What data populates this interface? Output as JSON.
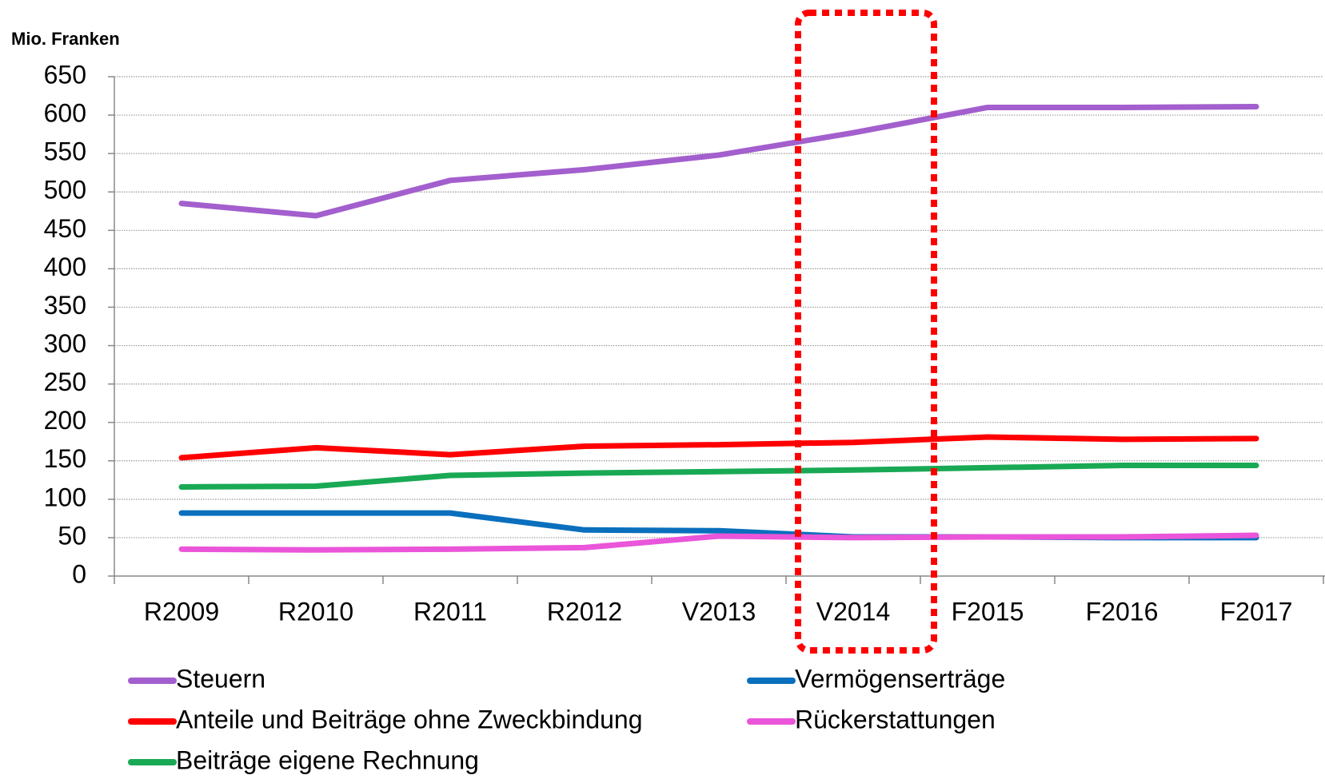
{
  "chart_data": {
    "type": "line",
    "y_axis_label": "Mio. Franken",
    "categories": [
      "R2009",
      "R2010",
      "R2011",
      "R2012",
      "V2013",
      "V2014",
      "F2015",
      "F2016",
      "F2017"
    ],
    "series": [
      {
        "name": "Steuern",
        "color": "#a35fcd",
        "values": [
          485,
          469,
          515,
          529,
          548,
          577,
          610,
          610,
          611
        ]
      },
      {
        "name": "Vermögenserträge",
        "color": "#0a6fbd",
        "values": [
          82,
          82,
          82,
          60,
          59,
          51,
          51,
          50,
          50
        ]
      },
      {
        "name": "Anteile und Beiträge ohne Zweckbindung",
        "color": "#ff0000",
        "values": [
          154,
          167,
          158,
          169,
          171,
          174,
          181,
          178,
          179
        ]
      },
      {
        "name": "Rückerstattungen",
        "color": "#ea55d9",
        "values": [
          35,
          34,
          35,
          37,
          52,
          50,
          51,
          51,
          53
        ]
      },
      {
        "name": "Beiträge eigene Rechnung",
        "color": "#19a954",
        "values": [
          116,
          117,
          131,
          134,
          136,
          138,
          141,
          144,
          144
        ]
      }
    ],
    "ylim": [
      0,
      650
    ],
    "yticks": [
      0,
      50,
      100,
      150,
      200,
      250,
      300,
      350,
      400,
      450,
      500,
      550,
      600,
      650
    ],
    "grid": true
  }
}
